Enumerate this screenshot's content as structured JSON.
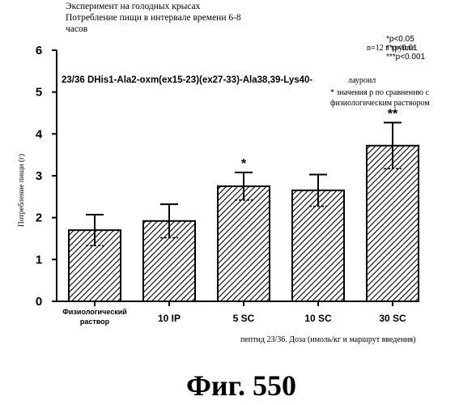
{
  "header": {
    "line1": "Эксперимент на голодных крысах",
    "line2": "Потребление пищи в интервале времени 6-8",
    "line3": "часов"
  },
  "n_label": "n=12 в группе",
  "significance": [
    "*p<0.05",
    "**p<0.01",
    "***p<0.001"
  ],
  "peptide_label": "23/36 DHis1-Ala2-oxm(ex15-23)(ex27-33)-Ala38,39-Lys40-",
  "lauroyl_label": "лауроил",
  "note_line1": "* значения р по сравнению с",
  "note_line2": "физиологическим раствором",
  "figure_label": "Фиг.  550",
  "chart_data": {
    "type": "bar",
    "categories": [
      "Физиологический раствор",
      "10 IP",
      "5 SC",
      "10 SC",
      "30 SC"
    ],
    "category_lines": [
      [
        "Физиологический",
        "раствор"
      ],
      [
        "10 IP"
      ],
      [
        "5 SC"
      ],
      [
        "10 SC"
      ],
      [
        "30 SC"
      ]
    ],
    "values": [
      1.7,
      1.92,
      2.75,
      2.65,
      3.72
    ],
    "errors": [
      0.37,
      0.4,
      0.33,
      0.38,
      0.55
    ],
    "significance_marks": [
      "",
      "",
      "*",
      "",
      "**"
    ],
    "xlabel": "пептид 23/36. Доза (нмоль/кг и маршрут введения)",
    "ylabel": "Потребление пищи (г)",
    "ylim": [
      0,
      6
    ],
    "yticks": [
      0,
      1,
      2,
      3,
      4,
      5,
      6
    ],
    "bar_pattern": "diagonal-hatch",
    "grid": false
  }
}
